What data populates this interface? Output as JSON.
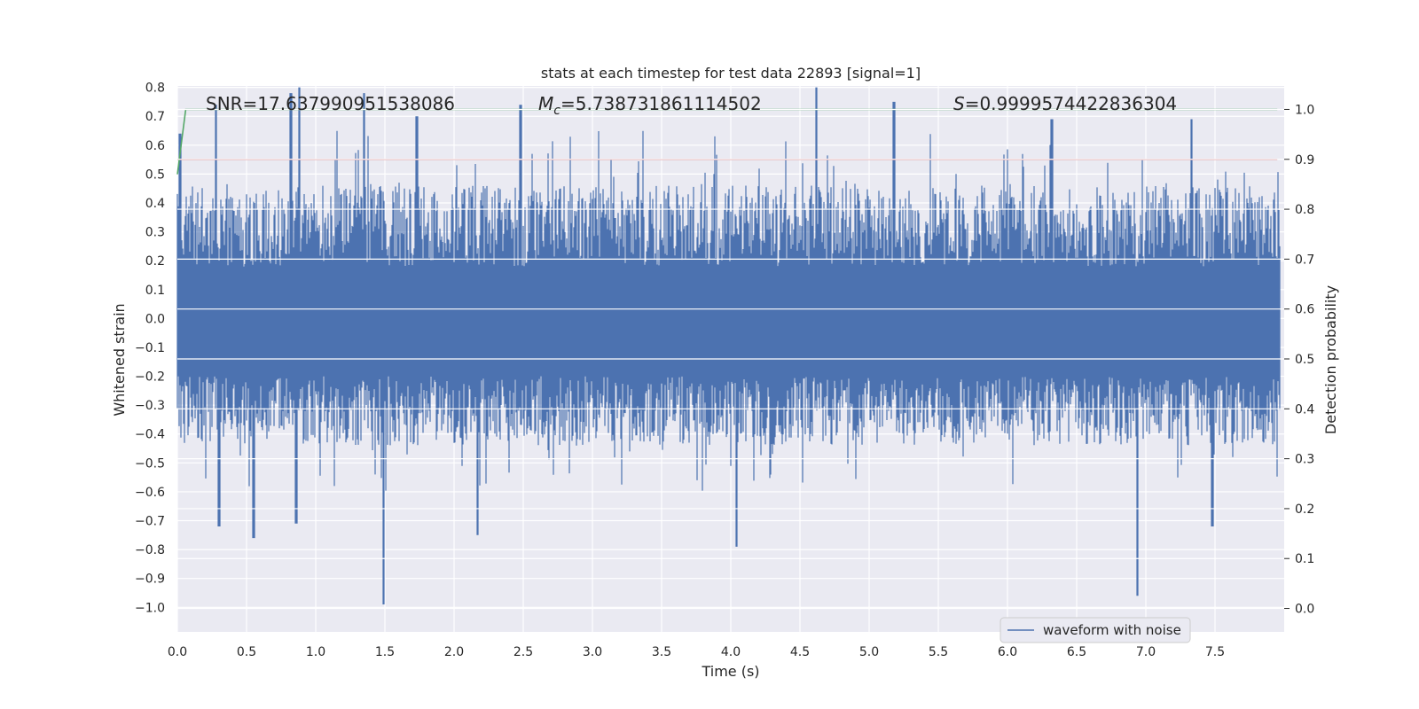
{
  "chart_data": {
    "type": "line",
    "title": "stats at each timestep for test data 22893 [signal=1]",
    "xlabel": "Time (s)",
    "ylabel": "Whitened strain",
    "ylabel_right": "Detection probability",
    "xlim": [
      0.0,
      8.0
    ],
    "ylim": [
      -1.085,
      0.805
    ],
    "ylim_right": [
      -0.047,
      1.047
    ],
    "x_ticks": [
      "0.0",
      "0.5",
      "1.0",
      "1.5",
      "2.0",
      "2.5",
      "3.0",
      "3.5",
      "4.0",
      "4.5",
      "5.0",
      "5.5",
      "6.0",
      "6.5",
      "7.0",
      "7.5"
    ],
    "y_ticks": [
      "0.8",
      "0.7",
      "0.6",
      "0.5",
      "0.4",
      "0.3",
      "0.2",
      "0.1",
      "0.0",
      "−0.1",
      "−0.2",
      "−0.3",
      "−0.4",
      "−0.5",
      "−0.6",
      "−0.7",
      "−0.8",
      "−0.9",
      "−1.0"
    ],
    "y_ticks_right": [
      "1.0",
      "0.9",
      "0.8",
      "0.7",
      "0.6",
      "0.5",
      "0.4",
      "0.3",
      "0.2",
      "0.1",
      "0.0"
    ],
    "annotations": {
      "snr": "SNR=17.637990951538086",
      "mc_symbol": "M",
      "mc_sub": "c",
      "mc_value": "=5.738731861114502",
      "s_symbol": "S",
      "s_value": "=0.9999574422836304"
    },
    "legend": {
      "label": "waveform with noise",
      "position": "lower-right"
    },
    "series": [
      {
        "name": "waveform with noise",
        "axis": "left",
        "color": "#4c72b0",
        "peaks_up": [
          [
            0.02,
            0.64
          ],
          [
            0.28,
            0.74
          ],
          [
            0.82,
            0.78
          ],
          [
            0.88,
            0.8
          ],
          [
            1.35,
            0.78
          ],
          [
            1.73,
            0.7
          ],
          [
            2.48,
            0.74
          ],
          [
            4.62,
            0.8
          ],
          [
            5.18,
            0.75
          ],
          [
            6.32,
            0.69
          ],
          [
            7.33,
            0.69
          ]
        ],
        "peaks_down": [
          [
            0.3,
            -0.72
          ],
          [
            0.55,
            -0.76
          ],
          [
            0.86,
            -0.71
          ],
          [
            1.49,
            -0.99
          ],
          [
            2.17,
            -0.75
          ],
          [
            4.04,
            -0.79
          ],
          [
            6.94,
            -0.96
          ],
          [
            7.48,
            -0.72
          ]
        ]
      },
      {
        "name": "threshold",
        "axis": "right",
        "color": "#c44e52",
        "x": [
          0.0,
          7.95
        ],
        "y": [
          0.9,
          0.9
        ]
      },
      {
        "name": "detection probability",
        "axis": "right",
        "color": "#55a868",
        "x": [
          0.0,
          0.06,
          7.95
        ],
        "y": [
          0.87,
          1.0,
          1.0
        ]
      }
    ]
  }
}
